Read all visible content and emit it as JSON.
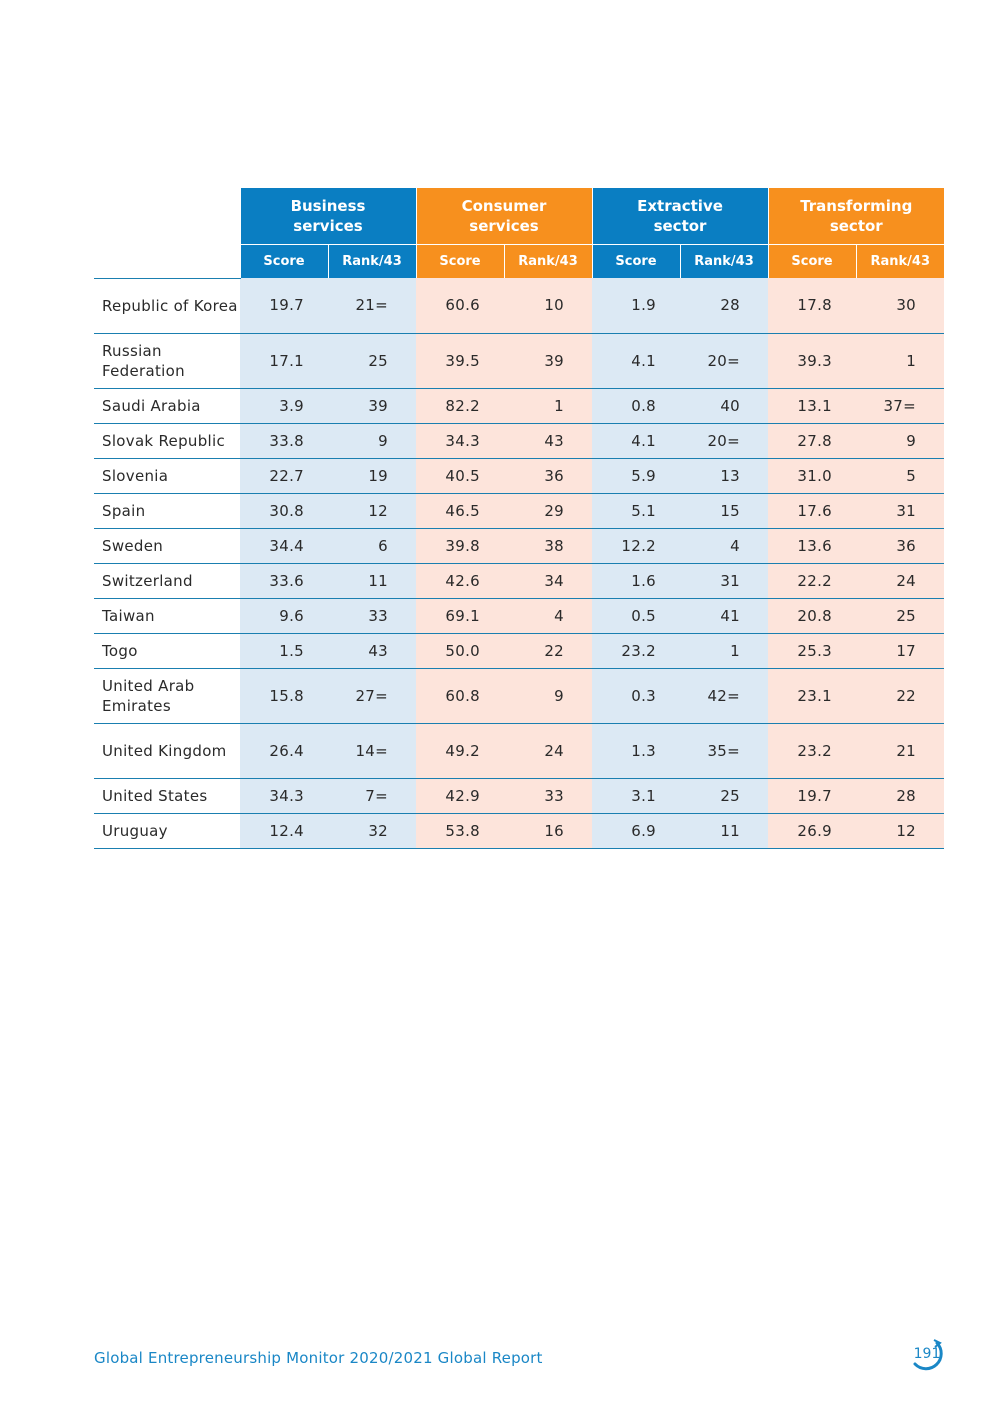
{
  "table": {
    "groups": [
      {
        "label_line1": "Business",
        "label_line2": "services",
        "color": "#0a7ec2"
      },
      {
        "label_line1": "Consumer",
        "label_line2": "services",
        "color": "#f7901e"
      },
      {
        "label_line1": "Extractive",
        "label_line2": "sector",
        "color": "#0a7ec2"
      },
      {
        "label_line1": "Transforming",
        "label_line2": "sector",
        "color": "#f7901e"
      }
    ],
    "sub_headers": {
      "score": "Score",
      "rank": "Rank/43"
    },
    "rows": [
      {
        "country": "Republic of Korea",
        "values": [
          "19.7",
          "21=",
          "60.6",
          "10",
          "1.9",
          "28",
          "17.8",
          "30"
        ]
      },
      {
        "country": "Russian Federation",
        "values": [
          "17.1",
          "25",
          "39.5",
          "39",
          "4.1",
          "20=",
          "39.3",
          "1"
        ]
      },
      {
        "country": "Saudi Arabia",
        "values": [
          "3.9",
          "39",
          "82.2",
          "1",
          "0.8",
          "40",
          "13.1",
          "37="
        ]
      },
      {
        "country": "Slovak Republic",
        "values": [
          "33.8",
          "9",
          "34.3",
          "43",
          "4.1",
          "20=",
          "27.8",
          "9"
        ]
      },
      {
        "country": "Slovenia",
        "values": [
          "22.7",
          "19",
          "40.5",
          "36",
          "5.9",
          "13",
          "31.0",
          "5"
        ]
      },
      {
        "country": "Spain",
        "values": [
          "30.8",
          "12",
          "46.5",
          "29",
          "5.1",
          "15",
          "17.6",
          "31"
        ]
      },
      {
        "country": "Sweden",
        "values": [
          "34.4",
          "6",
          "39.8",
          "38",
          "12.2",
          "4",
          "13.6",
          "36"
        ]
      },
      {
        "country": "Switzerland",
        "values": [
          "33.6",
          "11",
          "42.6",
          "34",
          "1.6",
          "31",
          "22.2",
          "24"
        ]
      },
      {
        "country": "Taiwan",
        "values": [
          "9.6",
          "33",
          "69.1",
          "4",
          "0.5",
          "41",
          "20.8",
          "25"
        ]
      },
      {
        "country": "Togo",
        "values": [
          "1.5",
          "43",
          "50.0",
          "22",
          "23.2",
          "1",
          "25.3",
          "17"
        ]
      },
      {
        "country": "United Arab Emirates",
        "values": [
          "15.8",
          "27=",
          "60.8",
          "9",
          "0.3",
          "42=",
          "23.1",
          "22"
        ]
      },
      {
        "country": "United Kingdom",
        "values": [
          "26.4",
          "14=",
          "49.2",
          "24",
          "1.3",
          "35=",
          "23.2",
          "21"
        ]
      },
      {
        "country": "United States",
        "values": [
          "34.3",
          "7=",
          "42.9",
          "33",
          "3.1",
          "25",
          "19.7",
          "28"
        ]
      },
      {
        "country": "Uruguay",
        "values": [
          "12.4",
          "32",
          "53.8",
          "16",
          "6.9",
          "11",
          "26.9",
          "12"
        ]
      }
    ]
  },
  "footer": {
    "report_title": "Global Entrepreneurship Monitor 2020/2021 Global Report",
    "page_number": "191"
  },
  "colors": {
    "blue_header": "#0a7ec2",
    "orange_header": "#f7901e",
    "blue_cell": "#dce9f4",
    "orange_cell": "#fde4db",
    "footer_text": "#1a87c6"
  }
}
